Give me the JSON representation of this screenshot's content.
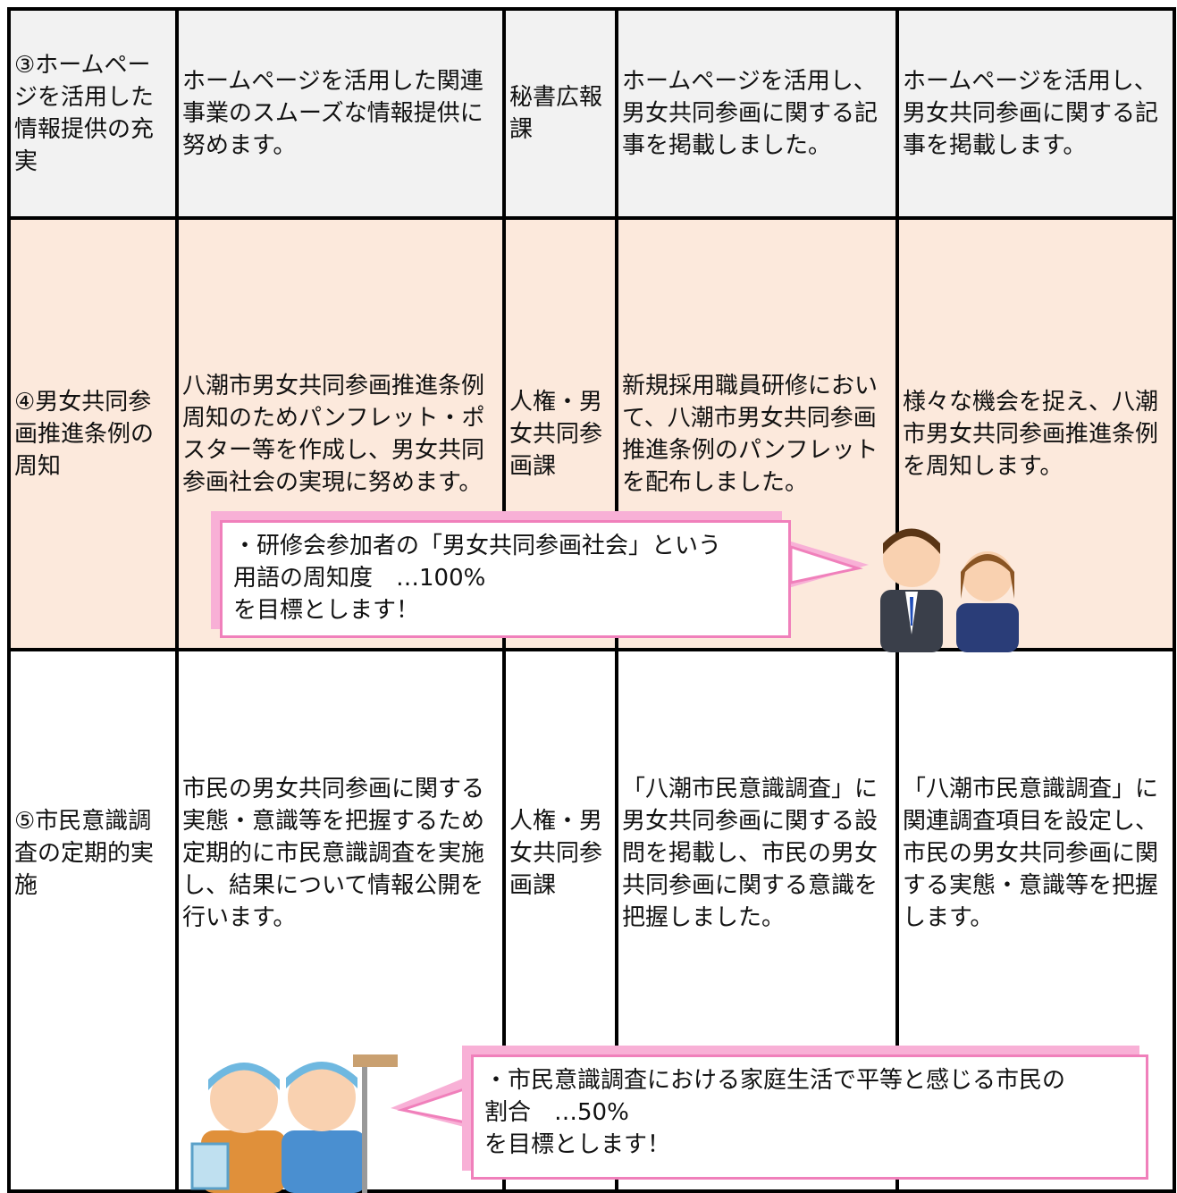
{
  "table": {
    "rows": [
      [
        "③ホームページを活用した情報提供の充実",
        "ホームページを活用した関連事業のスムーズな情報提供に努めます。",
        "秘書広報課",
        "ホームページを活用し、男女共同参画に関する記事を掲載しました。",
        "ホームページを活用し、男女共同参画に関する記事を掲載します。"
      ],
      [
        "④男女共同参画推進条例の周知",
        "八潮市男女共同参画推進条例周知のためパンフレット・ポスター等を作成し、男女共同参画社会の実現に努めます。",
        "人権・男女共同参画課",
        "新規採用職員研修において、八潮市男女共同参画推進条例のパンフレットを配布しました。",
        "様々な機会を捉え、八潮市男女共同参画推進条例を周知します。"
      ],
      [
        "⑤市民意識調査の定期的実施",
        "市民の男女共同参画に関する実態・意識等を把握するため定期的に市民意識調査を実施し、結果について情報公開を行います。",
        "人権・男女共同参画課",
        "「八潮市民意識調査」に男女共同参画に関する設問を掲載し、市民の男女共同参画に関する意識を把握しました。",
        "「八潮市民意識調査」に関連調査項目を設定し、市民の男女共同参画に関する実態・意識等を把握します。"
      ]
    ]
  },
  "callouts": [
    {
      "lines": [
        "・研修会参加者の「男女共同参画社会」という",
        "用語の周知度　…100%",
        "を目標とします！"
      ]
    },
    {
      "lines": [
        "・市民意識調査における家庭生活で平等と感じる市民の",
        "割合　…50%",
        "を目標とします！"
      ]
    }
  ]
}
